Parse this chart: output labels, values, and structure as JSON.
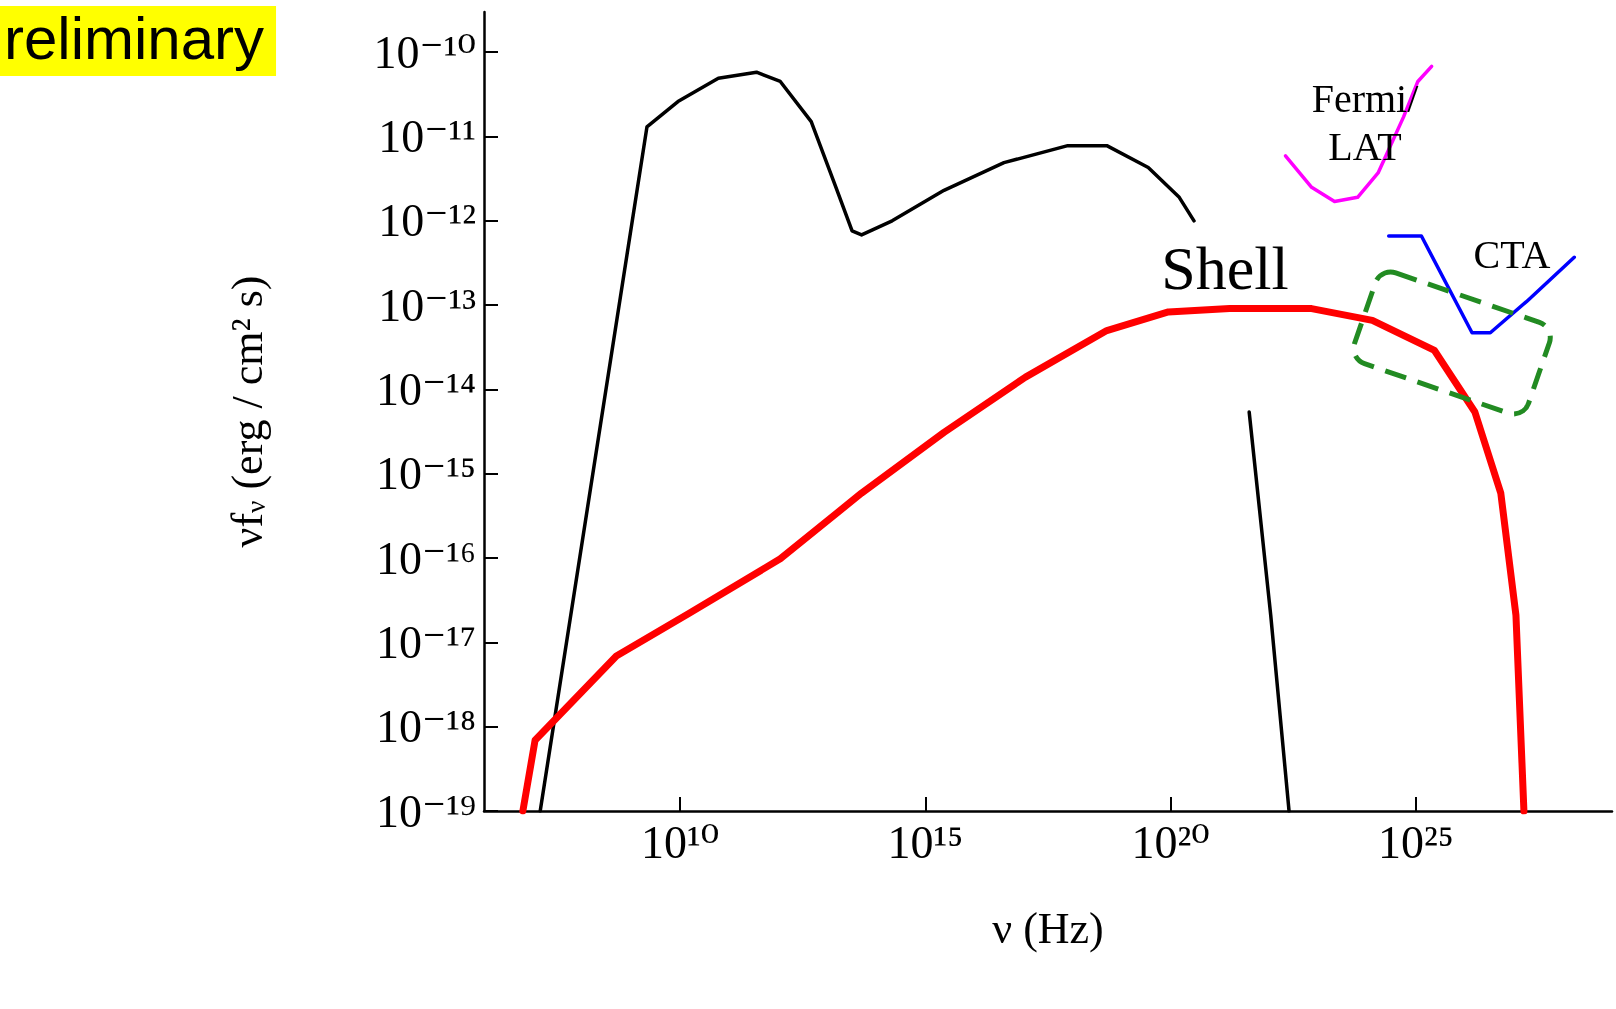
{
  "chart_data": {
    "type": "line",
    "xlabel": "ν (Hz)",
    "ylabel": "νf$_{ν}$ (erg / cm² s)",
    "log": "xy",
    "xlim": [
      1000000.0,
      1e+29
    ],
    "ylim": [
      1e-19,
      3e-10
    ],
    "xticks": [
      {
        "value": 10000000000.0,
        "label": "10¹⁰"
      },
      {
        "value": 1000000000000000.0,
        "label": "10¹⁵"
      },
      {
        "value": 1e+20,
        "label": "10²⁰"
      },
      {
        "value": 1e+25,
        "label": "10²⁵"
      }
    ],
    "yticks": [
      {
        "value": 1e-19,
        "label": "10⁻¹⁹"
      },
      {
        "value": 1e-18,
        "label": "10⁻¹⁸"
      },
      {
        "value": 1e-17,
        "label": "10⁻¹⁷"
      },
      {
        "value": 1e-16,
        "label": "10⁻¹⁶"
      },
      {
        "value": 1e-15,
        "label": "10⁻¹⁵"
      },
      {
        "value": 1e-14,
        "label": "10⁻¹⁴"
      },
      {
        "value": 1e-13,
        "label": "10⁻¹³"
      },
      {
        "value": 1e-12,
        "label": "10⁻¹²"
      },
      {
        "value": 1e-11,
        "label": "10⁻¹¹"
      },
      {
        "value": 1e-10,
        "label": "10⁻¹⁰"
      }
    ],
    "series": [
      {
        "color": "#000000",
        "x": [
          14000000.0,
          2100000000.0,
          9000000000.0,
          60000000000.0,
          360000000000.0,
          1100000000000.0,
          4700000000000.0,
          15000000000000.0,
          32000000000000.0,
          50000000000000.0,
          210000000000000.0,
          2400000000000000.0,
          4e+16,
          8e+17,
          5e+18,
          3.5e+19,
          1.5e+20,
          3e+20,
          1.6e+21,
          4e+21,
          1.1e+22,
          2.6e+22
        ],
        "values": [
          1e-19,
          1.3e-11,
          2.6e-11,
          4.9e-11,
          5.8e-11,
          4.5e-11,
          1.5e-11,
          2.5e-12,
          7.6e-13,
          6.8e-13,
          1e-12,
          2.3e-12,
          4.9e-12,
          7.8e-12,
          7.8e-12,
          4.3e-12,
          1.9e-12,
          1e-12,
          null,
          5.4e-15,
          2.1e-17,
          1e-19
        ]
      },
      {
        "color": "#ff0000",
        "x": [
          6200000.0,
          11000000.0,
          500000000.0,
          15000000000.0,
          1100000000000.0,
          50000000000000.0,
          2400000000000000.0,
          1.1e+17,
          5e+18,
          9e+19,
          1.6e+21,
          7.5e+22,
          1.3e+24,
          2.4e+25,
          1.6e+26,
          5.4e+26,
          1.1e+27,
          1.6e+27
        ],
        "values": [
          1e-19,
          6.9e-19,
          6.9e-18,
          2.2e-17,
          9.8e-17,
          5.9e-16,
          3.1e-15,
          1.4e-14,
          5e-14,
          8.3e-14,
          9.1e-14,
          9.1e-14,
          6.6e-14,
          2.9e-14,
          5.4e-15,
          5.9e-16,
          2.1e-17,
          1e-19
        ]
      },
      {
        "color": "#ff00ff",
        "x": [
          2.2e+22,
          7.5e+22,
          2.2e+23,
          6.5e+23,
          1.7e+24,
          5.6e+24,
          1.1e+25,
          2.1e+25
        ],
        "values": [
          5.9e-12,
          2.5e-12,
          1.7e-12,
          1.9e-12,
          3.7e-12,
          1.7e-11,
          4.5e-11,
          6.8e-11
        ]
      },
      {
        "color": "#0000ff",
        "x": [
          2.8e+24,
          1.3e+25,
          1.4e+26,
          3.3e+26,
          1.8e+27,
          1.7e+28
        ],
        "values": [
          6.6e-13,
          6.6e-13,
          4.7e-14,
          4.7e-14,
          1.1e-13,
          3.7e-13
        ]
      }
    ],
    "annotations": [
      "Shell",
      "Fermi/\nLAT",
      "CTA",
      "reliminary"
    ]
  }
}
